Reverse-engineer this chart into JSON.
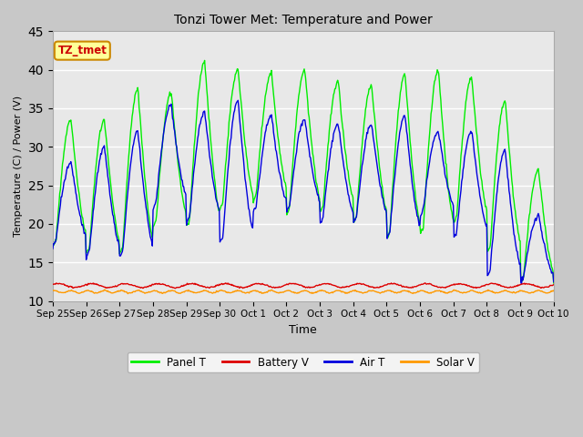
{
  "title": "Tonzi Tower Met: Temperature and Power",
  "xlabel": "Time",
  "ylabel": "Temperature (C) / Power (V)",
  "ylim": [
    10,
    45
  ],
  "xlim": [
    0,
    15
  ],
  "fig_facecolor": "#c8c8c8",
  "plot_facecolor": "#e8e8e8",
  "xtick_labels": [
    "Sep 25",
    "Sep 26",
    "Sep 27",
    "Sep 28",
    "Sep 29",
    "Sep 30",
    "Oct 1",
    "Oct 2",
    "Oct 3",
    "Oct 4",
    "Oct 5",
    "Oct 6",
    "Oct 7",
    "Oct 8",
    "Oct 9",
    "Oct 10"
  ],
  "xtick_positions": [
    0,
    1,
    2,
    3,
    4,
    5,
    6,
    7,
    8,
    9,
    10,
    11,
    12,
    13,
    14,
    15
  ],
  "panel_t_color": "#00ee00",
  "air_t_color": "#0000dd",
  "battery_v_color": "#dd0000",
  "solar_v_color": "#ff9900",
  "annotation_text": "TZ_tmet",
  "annotation_facecolor": "#ffff99",
  "annotation_edgecolor": "#cc8800",
  "annotation_textcolor": "#cc0000",
  "panel_peaks": [
    33.5,
    33.5,
    37.5,
    37.0,
    41.0,
    40.0,
    39.5,
    40.0,
    38.5,
    38.0,
    39.5,
    40.0,
    39.0,
    36.0,
    27.0
  ],
  "panel_troughs": [
    18.0,
    17.0,
    17.0,
    20.5,
    20.5,
    23.0,
    24.0,
    22.5,
    22.5,
    21.0,
    19.0,
    19.5,
    21.0,
    17.0,
    13.0
  ],
  "air_peaks": [
    28.0,
    30.0,
    32.0,
    35.5,
    34.5,
    36.0,
    34.0,
    33.5,
    33.0,
    33.0,
    34.0,
    32.0,
    32.0,
    29.5,
    21.0
  ],
  "air_troughs": [
    18.0,
    16.5,
    16.5,
    23.0,
    21.0,
    18.5,
    22.5,
    22.5,
    21.0,
    21.0,
    19.0,
    22.0,
    19.0,
    14.0,
    13.0
  ],
  "battery_base": 12.0,
  "solar_base": 11.2
}
